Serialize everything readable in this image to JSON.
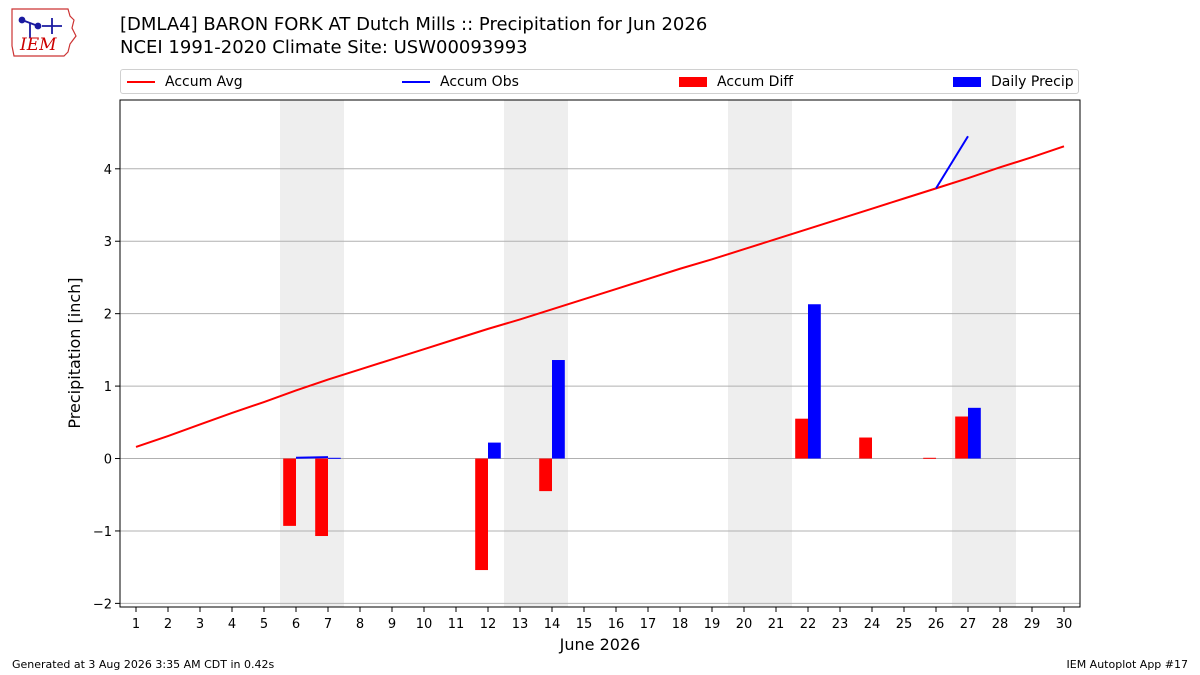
{
  "header": {
    "title_line1": "[DMLA4] BARON FORK  AT Dutch Mills :: Precipitation for Jun 2026",
    "title_line2": "NCEI 1991-2020 Climate Site: USW00093993",
    "logo_text": "IEM"
  },
  "legend": {
    "items": [
      {
        "label": "Accum Avg",
        "color": "#ff0000",
        "kind": "line"
      },
      {
        "label": "Accum Obs",
        "color": "#0000ff",
        "kind": "line"
      },
      {
        "label": "Accum Diff",
        "color": "#ff0000",
        "kind": "bar"
      },
      {
        "label": "Daily Precip",
        "color": "#0000ff",
        "kind": "bar"
      }
    ]
  },
  "footer": {
    "left": "Generated at 3 Aug 2026 3:35 AM CDT in 0.42s",
    "right": "IEM Autoplot App #17"
  },
  "chart_data": {
    "type": "bar",
    "xlabel": "June 2026",
    "ylabel": "Precipitation [inch]",
    "xlim": [
      0.5,
      30.5
    ],
    "ylim": [
      -2.05,
      4.95
    ],
    "x_ticks": [
      1,
      2,
      3,
      4,
      5,
      6,
      7,
      8,
      9,
      10,
      11,
      12,
      13,
      14,
      15,
      16,
      17,
      18,
      19,
      20,
      21,
      22,
      23,
      24,
      25,
      26,
      27,
      28,
      29,
      30
    ],
    "y_ticks": [
      -2,
      -1,
      0,
      1,
      2,
      3,
      4
    ],
    "grid": "horizontal",
    "legend_position": "top",
    "weekend_shading": [
      [
        5.5,
        7.5
      ],
      [
        12.5,
        14.5
      ],
      [
        19.5,
        21.5
      ],
      [
        26.5,
        28.5
      ]
    ],
    "accum_avg": {
      "name": "Accum Avg",
      "color": "#ff0000",
      "x": [
        1,
        2,
        3,
        4,
        5,
        6,
        7,
        8,
        9,
        10,
        11,
        12,
        13,
        14,
        15,
        16,
        17,
        18,
        19,
        20,
        21,
        22,
        23,
        24,
        25,
        26,
        27,
        28,
        29,
        30
      ],
      "y": [
        0.16,
        0.31,
        0.47,
        0.63,
        0.78,
        0.94,
        1.09,
        1.23,
        1.37,
        1.51,
        1.65,
        1.79,
        1.92,
        2.06,
        2.2,
        2.34,
        2.48,
        2.62,
        2.75,
        2.89,
        3.03,
        3.17,
        3.31,
        3.45,
        3.59,
        3.73,
        3.87,
        4.02,
        4.16,
        4.31
      ]
    },
    "accum_obs": {
      "name": "Accum Obs",
      "color": "#0000ff",
      "segments": [
        {
          "x": [
            6,
            7
          ],
          "y": [
            0.01,
            0.02
          ]
        },
        {
          "x": [
            26,
            27
          ],
          "y": [
            3.73,
            4.45
          ]
        }
      ]
    },
    "accum_diff": {
      "name": "Accum Diff",
      "color": "#ff0000",
      "x": [
        6,
        7,
        12,
        14,
        22,
        24,
        26,
        27
      ],
      "values": [
        -0.93,
        -1.07,
        -1.54,
        -0.45,
        0.55,
        0.29,
        0.01,
        0.58
      ]
    },
    "daily_precip": {
      "name": "Daily Precip",
      "color": "#0000ff",
      "x": [
        7,
        12,
        14,
        22,
        27
      ],
      "values": [
        0.01,
        0.22,
        1.36,
        2.13,
        0.7
      ]
    }
  }
}
